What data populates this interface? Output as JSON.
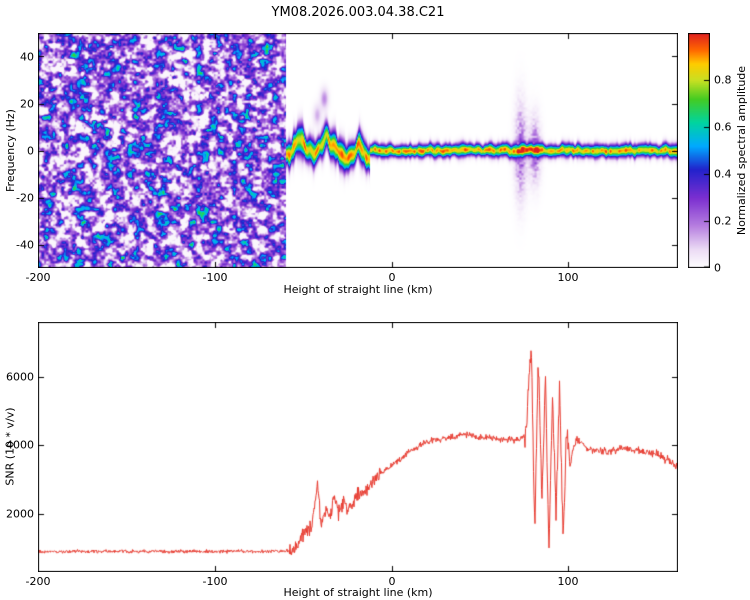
{
  "title": "YM08.2026.003.04.38.C21",
  "chart_data": [
    {
      "type": "heatmap",
      "title": "YM08.2026.003.04.38.C21",
      "xlabel": "Height of straight line (km)",
      "ylabel": "Frequency (Hz)",
      "xlim": [
        -200,
        162
      ],
      "ylim": [
        -50,
        50
      ],
      "xticks": [
        -200,
        -100,
        0,
        100
      ],
      "yticks": [
        -40,
        -20,
        0,
        20,
        40
      ],
      "grid": false,
      "colorbar": {
        "label": "Normalized spectral amplitude",
        "range": [
          0,
          1
        ],
        "ticks": [
          0,
          0.2,
          0.4,
          0.6,
          0.8
        ],
        "stops": [
          {
            "v": 0.0,
            "c": "#ffffff"
          },
          {
            "v": 0.08,
            "c": "#ecdcf5"
          },
          {
            "v": 0.18,
            "c": "#b77fe0"
          },
          {
            "v": 0.3,
            "c": "#7b2fd0"
          },
          {
            "v": 0.42,
            "c": "#2222cc"
          },
          {
            "v": 0.52,
            "c": "#00aaff"
          },
          {
            "v": 0.62,
            "c": "#00d4a0"
          },
          {
            "v": 0.72,
            "c": "#44cc22"
          },
          {
            "v": 0.8,
            "c": "#c8e022"
          },
          {
            "v": 0.87,
            "c": "#ffcc00"
          },
          {
            "v": 0.93,
            "c": "#ff6600"
          },
          {
            "v": 1.0,
            "c": "#e02020"
          }
        ]
      },
      "regions": {
        "noise": {
          "x_range": [
            -200,
            -60
          ],
          "description": "purple speckle noise field",
          "amplitude_range": [
            0,
            0.5
          ]
        },
        "echo": {
          "x_range": [
            -60,
            162
          ],
          "center_freq": 0,
          "description": "narrow high-amplitude echo stripe near 0 Hz"
        },
        "wavy_segment": {
          "x_range": [
            -60,
            -12
          ],
          "freq_wander_hz": 6,
          "description": "thicker wavy portion of echo stripe"
        },
        "disturbances_x": [
          73,
          81
        ]
      }
    },
    {
      "type": "line",
      "xlabel": "Height of straight line (km)",
      "ylabel": "SNR (10 * v/v)",
      "xlim": [
        -200,
        162
      ],
      "ylim": [
        300,
        7600
      ],
      "xticks": [
        -200,
        -100,
        0,
        100
      ],
      "yticks": [
        2000,
        4000,
        6000
      ],
      "color": "#e8392e",
      "profile": [
        {
          "x": -200,
          "y": 900
        },
        {
          "x": -62,
          "y": 900
        },
        {
          "x": -55,
          "y": 950
        },
        {
          "x": -50,
          "y": 1400
        },
        {
          "x": -45,
          "y": 1600
        },
        {
          "x": -42,
          "y": 2900
        },
        {
          "x": -40,
          "y": 1700
        },
        {
          "x": -37,
          "y": 2200
        },
        {
          "x": -35,
          "y": 1900
        },
        {
          "x": -32,
          "y": 2500
        },
        {
          "x": -30,
          "y": 2000
        },
        {
          "x": -27,
          "y": 2400
        },
        {
          "x": -25,
          "y": 2100
        },
        {
          "x": -20,
          "y": 2500
        },
        {
          "x": -15,
          "y": 2700
        },
        {
          "x": -10,
          "y": 3000
        },
        {
          "x": -5,
          "y": 3200
        },
        {
          "x": 0,
          "y": 3400
        },
        {
          "x": 10,
          "y": 3800
        },
        {
          "x": 20,
          "y": 4100
        },
        {
          "x": 30,
          "y": 4200
        },
        {
          "x": 40,
          "y": 4300
        },
        {
          "x": 50,
          "y": 4250
        },
        {
          "x": 60,
          "y": 4200
        },
        {
          "x": 70,
          "y": 4150
        },
        {
          "x": 76,
          "y": 4300
        },
        {
          "x": 79,
          "y": 7000
        },
        {
          "x": 81,
          "y": 1500
        },
        {
          "x": 83,
          "y": 6500
        },
        {
          "x": 85,
          "y": 2500
        },
        {
          "x": 87,
          "y": 6000
        },
        {
          "x": 89,
          "y": 1000
        },
        {
          "x": 91,
          "y": 5500
        },
        {
          "x": 93,
          "y": 2000
        },
        {
          "x": 95,
          "y": 5800
        },
        {
          "x": 97,
          "y": 1200
        },
        {
          "x": 99,
          "y": 4500
        },
        {
          "x": 101,
          "y": 3500
        },
        {
          "x": 105,
          "y": 4200
        },
        {
          "x": 110,
          "y": 3900
        },
        {
          "x": 120,
          "y": 3800
        },
        {
          "x": 130,
          "y": 3900
        },
        {
          "x": 140,
          "y": 3850
        },
        {
          "x": 150,
          "y": 3750
        },
        {
          "x": 162,
          "y": 3400
        }
      ],
      "noise_segments": [
        {
          "x_range": [
            -200,
            -58
          ],
          "amp": 60
        },
        {
          "x_range": [
            -58,
            -5
          ],
          "amp": 260
        },
        {
          "x_range": [
            -5,
            74
          ],
          "amp": 120
        },
        {
          "x_range": [
            74,
            103
          ],
          "amp": 400
        },
        {
          "x_range": [
            103,
            162
          ],
          "amp": 150
        }
      ]
    }
  ]
}
